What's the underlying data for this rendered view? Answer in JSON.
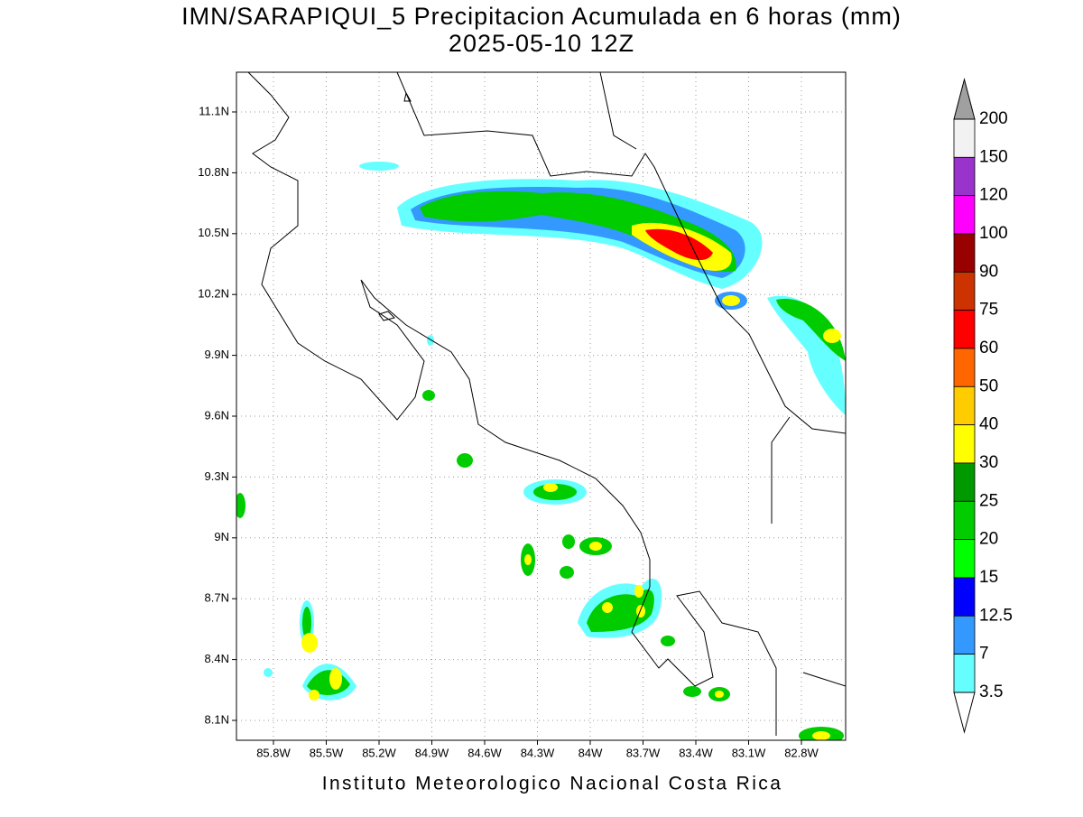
{
  "title": [
    "IMN/SARAPIQUI_5 Precipitacion Acumulada en 6 horas (mm)",
    "2025-05-10 12Z"
  ],
  "map": {
    "lon_ticks": [
      "85.8W",
      "85.5W",
      "85.2W",
      "84.9W",
      "84.6W",
      "84.3W",
      "84W",
      "83.7W",
      "83.4W",
      "83.1W",
      "82.8W"
    ],
    "lat_ticks": [
      "11.1N",
      "10.8N",
      "10.5N",
      "10.2N",
      "9.9N",
      "9.6N",
      "9.3N",
      "9N",
      "8.7N",
      "8.4N",
      "8.1N"
    ]
  },
  "colorbar": {
    "levels": [
      200,
      150,
      120,
      100,
      90,
      75,
      60,
      50,
      40,
      30,
      25,
      20,
      15,
      12.5,
      7,
      3.5
    ],
    "colors": [
      "#f2f2f2",
      "#9933cc",
      "#ff00ff",
      "#990000",
      "#cc3300",
      "#ff0000",
      "#ff6600",
      "#ffcc00",
      "#ffff00",
      "#009900",
      "#00cc00",
      "#00ff00",
      "#0000ff",
      "#3399ff",
      "#66ffff"
    ],
    "over_color": "#a0a0a0",
    "under_color": "#ffffff"
  },
  "footer": "Instituto Meteorologico Nacional Costa Rica"
}
